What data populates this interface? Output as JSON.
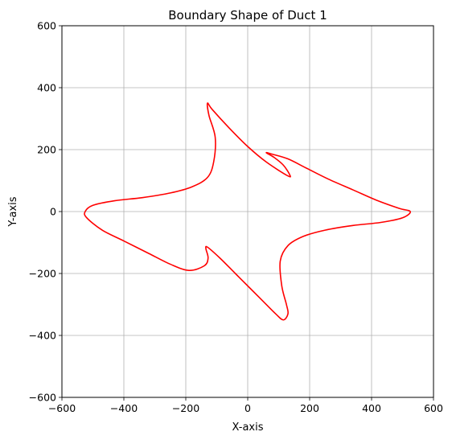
{
  "chart_data": {
    "type": "line",
    "title": "Boundary Shape of Duct 1",
    "xlabel": "X-axis",
    "ylabel": "Y-axis",
    "xlim": [
      -600,
      600
    ],
    "ylim": [
      -600,
      600
    ],
    "xticks": [
      -600,
      -400,
      -200,
      0,
      200,
      400,
      600
    ],
    "yticks": [
      -600,
      -400,
      -200,
      0,
      200,
      400,
      600
    ],
    "xtick_labels": [
      "−600",
      "−400",
      "−200",
      "0",
      "200",
      "400",
      "600"
    ],
    "ytick_labels": [
      "−600",
      "−400",
      "−200",
      "0",
      "200",
      "400",
      "600"
    ],
    "grid": true,
    "series": [
      {
        "color": "#ff0000",
        "closed": true,
        "x": [
          525,
          500,
          430,
          340,
          250,
          180,
          130,
          105,
          110,
          125,
          130,
          115,
          90,
          50,
          10,
          -40,
          -90,
          -130,
          -135,
          -128,
          -140,
          -190,
          -250,
          -320,
          -400,
          -470,
          -520,
          -525,
          -500,
          -430,
          -340,
          -250,
          -180,
          -130,
          -110,
          -105,
          -125,
          -130,
          -115,
          -60,
          0,
          60,
          130,
          135,
          115,
          85,
          60,
          80,
          130,
          190,
          260,
          340,
          420,
          490,
          525
        ],
        "y": [
          0,
          -20,
          -35,
          -45,
          -60,
          -80,
          -110,
          -160,
          -240,
          -300,
          -330,
          -350,
          -330,
          -290,
          -250,
          -200,
          -150,
          -115,
          -120,
          -150,
          -175,
          -190,
          -170,
          -135,
          -95,
          -60,
          -20,
          0,
          20,
          35,
          45,
          60,
          80,
          110,
          160,
          240,
          310,
          350,
          330,
          270,
          210,
          160,
          115,
          120,
          150,
          175,
          190,
          185,
          170,
          140,
          105,
          70,
          35,
          10,
          0
        ]
      }
    ]
  }
}
